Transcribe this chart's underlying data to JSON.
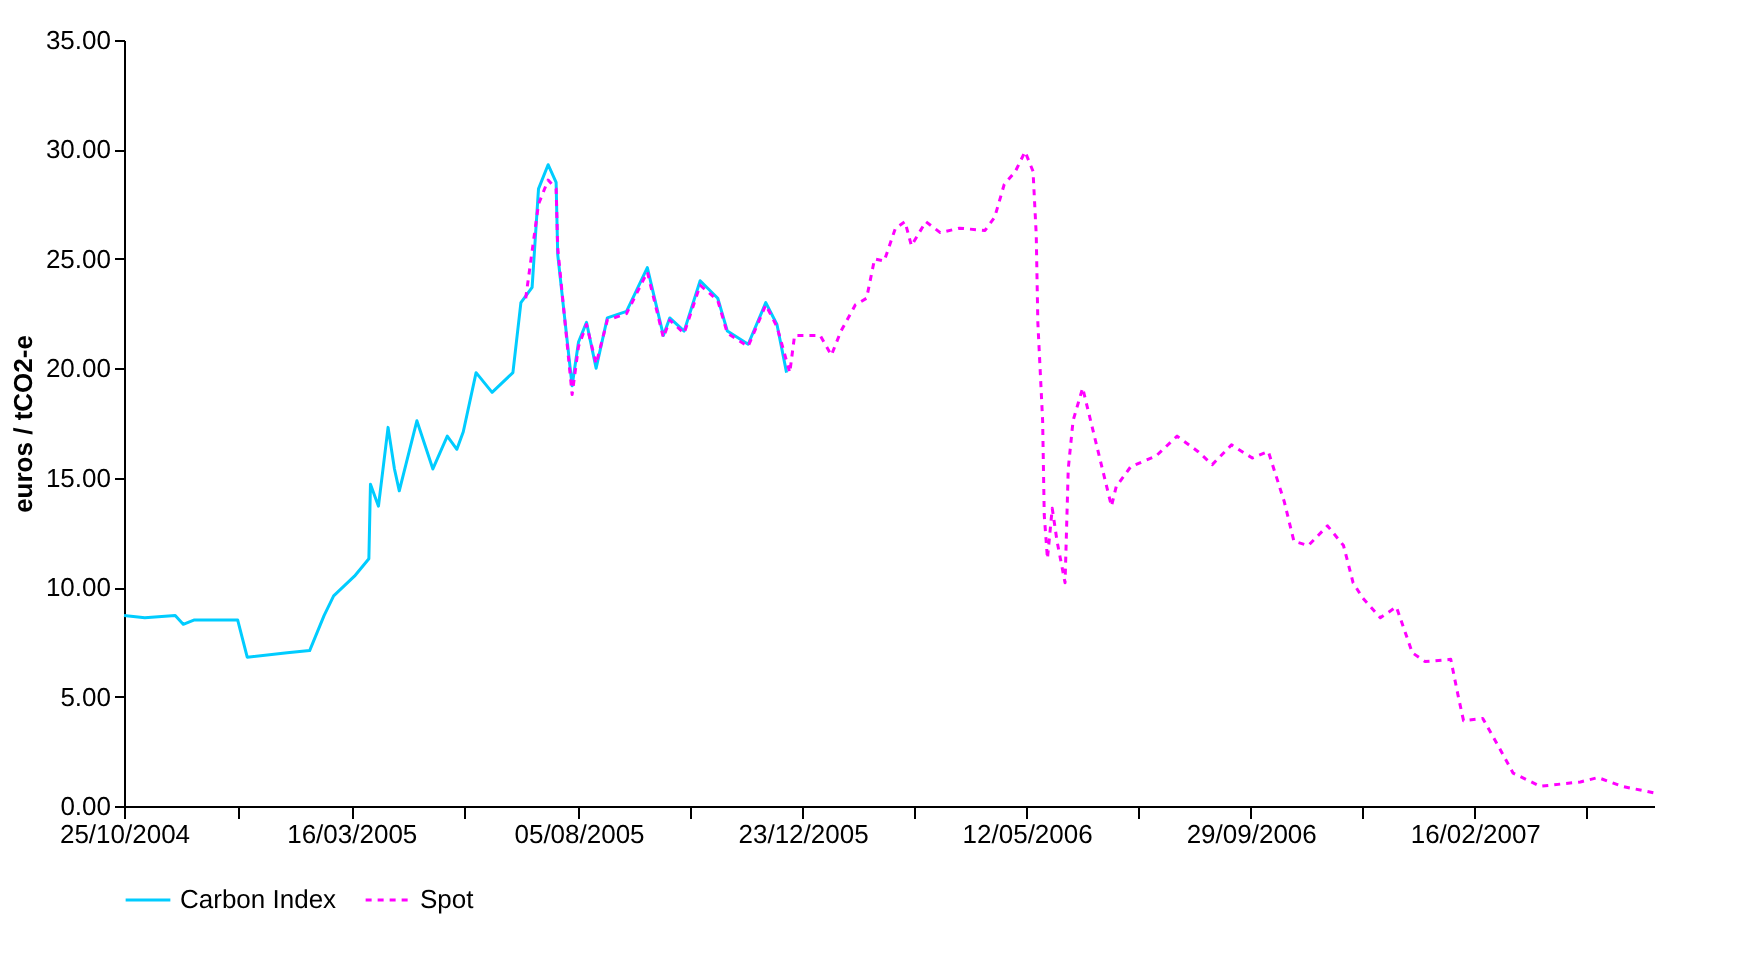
{
  "chart_data": {
    "type": "line",
    "ylabel": "euros / tCO2-e",
    "xlim": [
      "2004-10-25",
      "2007-06-08"
    ],
    "xticks": [
      {
        "value": "2004-10-25",
        "label": "25/10/2004"
      },
      {
        "value": "2005-01-04",
        "label": null
      },
      {
        "value": "2005-03-16",
        "label": "16/03/2005"
      },
      {
        "value": "2005-05-26",
        "label": null
      },
      {
        "value": "2005-08-05",
        "label": "05/08/2005"
      },
      {
        "value": "2005-10-14",
        "label": null
      },
      {
        "value": "2005-12-23",
        "label": "23/12/2005"
      },
      {
        "value": "2006-03-03",
        "label": null
      },
      {
        "value": "2006-05-12",
        "label": "12/05/2006"
      },
      {
        "value": "2006-07-21",
        "label": null
      },
      {
        "value": "2006-09-29",
        "label": "29/09/2006"
      },
      {
        "value": "2006-12-08",
        "label": null
      },
      {
        "value": "2007-02-16",
        "label": "16/02/2007"
      },
      {
        "value": "2007-04-27",
        "label": null
      }
    ],
    "ylim": [
      0,
      35
    ],
    "yticks": [
      {
        "value": 0,
        "label": "0.00"
      },
      {
        "value": 5,
        "label": "5.00"
      },
      {
        "value": 10,
        "label": "10.00"
      },
      {
        "value": 15,
        "label": "15.00"
      },
      {
        "value": 20,
        "label": "20.00"
      },
      {
        "value": 25,
        "label": "25.00"
      },
      {
        "value": 30,
        "label": "30.00"
      },
      {
        "value": 35,
        "label": "35.00"
      }
    ],
    "grid": false,
    "legend": "bottom",
    "series": [
      {
        "name": "Carbon Index",
        "color": "#00ccff",
        "line_style": "solid",
        "x": [
          "2004-10-25",
          "2004-11-07",
          "2004-11-26",
          "2004-12-01",
          "2004-12-08",
          "2005-01-04",
          "2005-01-10",
          "2005-02-04",
          "2005-02-18",
          "2005-02-27",
          "2005-03-05",
          "2005-03-18",
          "2005-03-27",
          "2005-03-28",
          "2005-04-02",
          "2005-04-08",
          "2005-04-12",
          "2005-04-15",
          "2005-04-26",
          "2005-05-06",
          "2005-05-15",
          "2005-05-21",
          "2005-05-25",
          "2005-06-02",
          "2005-06-12",
          "2005-06-25",
          "2005-06-30",
          "2005-07-07",
          "2005-07-11",
          "2005-07-17",
          "2005-07-22",
          "2005-07-23",
          "2005-08-01",
          "2005-08-05",
          "2005-08-10",
          "2005-08-16",
          "2005-08-23",
          "2005-09-04",
          "2005-09-17",
          "2005-09-27",
          "2005-10-01",
          "2005-10-10",
          "2005-10-20",
          "2005-10-31",
          "2005-11-06",
          "2005-11-19",
          "2005-11-30",
          "2005-12-07",
          "2005-12-13"
        ],
        "values": [
          8.7,
          8.6,
          8.7,
          8.3,
          8.5,
          8.5,
          6.8,
          7.0,
          7.1,
          8.7,
          9.6,
          10.5,
          11.3,
          14.7,
          13.7,
          17.3,
          15.4,
          14.4,
          17.6,
          15.4,
          16.9,
          16.3,
          17.1,
          19.8,
          18.9,
          19.8,
          23.0,
          23.7,
          28.2,
          29.3,
          28.5,
          25.2,
          19.2,
          21.2,
          22.1,
          20.0,
          22.3,
          22.6,
          24.6,
          21.5,
          22.3,
          21.7,
          24.0,
          23.2,
          21.7,
          21.1,
          23.0,
          22.0,
          19.8
        ]
      },
      {
        "name": "Spot",
        "color": "#ff00ff",
        "line_style": "dashed",
        "x": [
          "2005-07-03",
          "2005-07-11",
          "2005-07-17",
          "2005-07-22",
          "2005-07-23",
          "2005-08-01",
          "2005-08-05",
          "2005-08-10",
          "2005-08-16",
          "2005-08-23",
          "2005-09-04",
          "2005-09-17",
          "2005-09-27",
          "2005-10-01",
          "2005-10-10",
          "2005-10-20",
          "2005-10-31",
          "2005-11-06",
          "2005-11-19",
          "2005-11-30",
          "2005-12-07",
          "2005-12-15",
          "2005-12-18",
          "2006-01-03",
          "2006-01-10",
          "2006-01-16",
          "2006-01-25",
          "2006-02-01",
          "2006-02-06",
          "2006-02-12",
          "2006-02-19",
          "2006-02-25",
          "2006-03-01",
          "2006-03-10",
          "2006-03-19",
          "2006-03-31",
          "2006-04-16",
          "2006-04-22",
          "2006-04-28",
          "2006-05-05",
          "2006-05-11",
          "2006-05-16",
          "2006-05-18",
          "2006-05-19",
          "2006-05-22",
          "2006-05-23",
          "2006-05-25",
          "2006-05-28",
          "2006-05-31",
          "2006-06-05",
          "2006-06-07",
          "2006-06-10",
          "2006-06-16",
          "2006-06-25",
          "2006-07-04",
          "2006-07-07",
          "2006-07-16",
          "2006-08-01",
          "2006-08-14",
          "2006-08-27",
          "2006-09-05",
          "2006-09-17",
          "2006-09-30",
          "2006-10-10",
          "2006-10-20",
          "2006-10-26",
          "2006-11-04",
          "2006-11-16",
          "2006-11-26",
          "2006-12-02",
          "2006-12-08",
          "2006-12-19",
          "2006-12-29",
          "2007-01-08",
          "2007-01-16",
          "2007-02-01",
          "2007-02-06",
          "2007-02-09",
          "2007-02-21",
          "2007-03-03",
          "2007-03-12",
          "2007-03-29",
          "2007-04-23",
          "2007-05-04",
          "2007-05-19",
          "2007-06-08"
        ],
        "values": [
          23.2,
          27.5,
          28.6,
          28.2,
          25.5,
          18.8,
          21.0,
          22.0,
          20.2,
          22.2,
          22.5,
          24.4,
          21.4,
          22.2,
          21.6,
          23.8,
          23.1,
          21.6,
          21.0,
          22.9,
          21.9,
          19.8,
          21.5,
          21.5,
          20.6,
          21.7,
          22.9,
          23.2,
          25.0,
          24.9,
          26.4,
          26.7,
          25.6,
          26.7,
          26.2,
          26.4,
          26.3,
          26.9,
          28.4,
          29.0,
          29.9,
          29.0,
          26.1,
          22.1,
          17.6,
          13.3,
          11.3,
          13.6,
          12.1,
          10.2,
          15.4,
          17.6,
          19.1,
          16.4,
          13.7,
          14.6,
          15.5,
          16.0,
          16.9,
          16.2,
          15.6,
          16.5,
          15.9,
          16.2,
          13.9,
          12.1,
          11.9,
          12.8,
          11.9,
          10.2,
          9.5,
          8.6,
          9.1,
          7.0,
          6.6,
          6.7,
          4.9,
          3.9,
          4.0,
          2.7,
          1.5,
          0.9,
          1.1,
          1.3,
          0.9,
          0.6
        ]
      }
    ]
  }
}
